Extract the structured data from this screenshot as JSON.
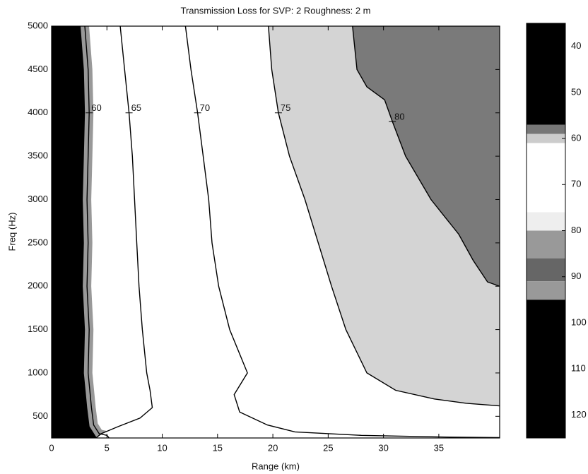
{
  "chart_data": {
    "type": "contour",
    "title": "Transmission Loss for SVP: 2 Roughness: 2 m",
    "x_label": "Range (km)",
    "y_label": "Freq (Hz)",
    "xlim": [
      0,
      40.5
    ],
    "ylim": [
      250,
      5000
    ],
    "xticks": [
      0,
      5,
      10,
      15,
      20,
      25,
      30,
      35
    ],
    "yticks": [
      500,
      1000,
      1500,
      2000,
      2500,
      3000,
      3500,
      4000,
      4500,
      5000
    ],
    "contours": [
      {
        "level": 60,
        "color": "#000000",
        "fill": "#ffffff",
        "x": [
          3.0,
          3.3,
          3.4,
          3.3,
          3.2,
          3.3,
          3.2,
          3.4,
          3.3,
          3.6,
          3.8,
          4.3,
          5.0,
          5.2
        ],
        "y": [
          5000,
          4500,
          4000,
          3500,
          3000,
          2500,
          2000,
          1500,
          1000,
          600,
          400,
          300,
          280,
          250
        ]
      },
      {
        "level": 65,
        "color": "#000000",
        "fill": "#ffffff",
        "x": [
          6.2,
          6.6,
          7.0,
          7.3,
          7.5,
          7.7,
          7.9,
          8.2,
          8.6,
          8.9,
          9.1,
          8.0,
          6.0,
          4.5,
          4.0
        ],
        "y": [
          5000,
          4500,
          4000,
          3500,
          3000,
          2500,
          2000,
          1500,
          1000,
          800,
          600,
          480,
          380,
          300,
          250
        ]
      },
      {
        "level": 70,
        "color": "#000000",
        "fill": "#ffffff",
        "x": [
          12.1,
          12.6,
          13.2,
          13.7,
          14.2,
          14.5,
          15.1,
          16.1,
          17.7,
          16.5,
          17.0,
          19.5,
          22.0,
          28.0,
          36.0,
          40.5
        ],
        "y": [
          5000,
          4500,
          4000,
          3500,
          3000,
          2500,
          2000,
          1500,
          1000,
          750,
          550,
          400,
          320,
          280,
          260,
          255
        ]
      },
      {
        "level": 75,
        "color": "#000000",
        "fill": "#d4d4d4",
        "x": [
          19.6,
          19.9,
          20.5,
          21.5,
          22.9,
          24.1,
          25.3,
          26.6,
          28.5,
          31.1,
          34.6,
          37.5,
          40.5
        ],
        "y": [
          5000,
          4500,
          4000,
          3500,
          3000,
          2500,
          2000,
          1500,
          1000,
          800,
          700,
          650,
          620
        ]
      },
      {
        "level": 80,
        "color": "#000000",
        "fill": "#7a7a7a",
        "x": [
          27.2,
          27.6,
          28.5,
          30.1,
          30.8,
          32.0,
          34.3,
          36.8,
          38.1,
          39.4,
          40.5
        ],
        "y": [
          5000,
          4500,
          4300,
          4150,
          3900,
          3500,
          3000,
          2600,
          2300,
          2050,
          2000
        ]
      }
    ],
    "colorbar": {
      "clim": [
        35,
        125
      ],
      "ticks": [
        40,
        50,
        60,
        70,
        80,
        90,
        100,
        110,
        120
      ],
      "colormap": [
        {
          "value": 35,
          "color": "#000000"
        },
        {
          "value": 57,
          "color": "#777777"
        },
        {
          "value": 59,
          "color": "#cccccc"
        },
        {
          "value": 61,
          "color": "#ffffff"
        },
        {
          "value": 76,
          "color": "#eeeeee"
        },
        {
          "value": 80,
          "color": "#999999"
        },
        {
          "value": 86,
          "color": "#666666"
        },
        {
          "value": 91,
          "color": "#999999"
        },
        {
          "value": 95,
          "color": "#000000"
        }
      ]
    }
  }
}
